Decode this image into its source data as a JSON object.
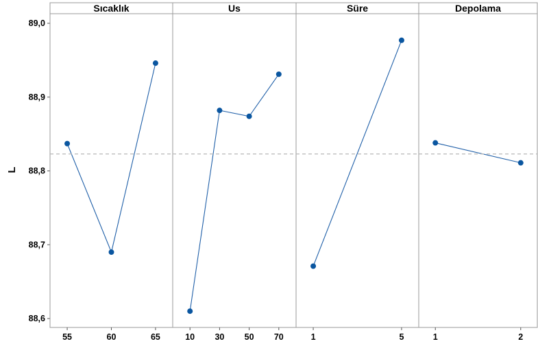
{
  "chart_data": {
    "type": "line",
    "ylabel": "L",
    "ylim": [
      88.6,
      89.0
    ],
    "yticks": [
      88.6,
      88.7,
      88.8,
      88.9,
      89.0
    ],
    "ytick_labels": [
      "88,6",
      "88,7",
      "88,8",
      "88,9",
      "89,0"
    ],
    "grand_mean": 88.823,
    "mean_line_style": "dashed",
    "grid": false,
    "panels": [
      {
        "title": "Sıcaklık",
        "categories": [
          "55",
          "60",
          "65"
        ],
        "values": [
          88.837,
          88.69,
          88.946
        ]
      },
      {
        "title": "Us",
        "categories": [
          "10",
          "30",
          "50",
          "70"
        ],
        "values": [
          88.61,
          88.882,
          88.874,
          88.931
        ]
      },
      {
        "title": "Süre",
        "categories": [
          "1",
          "5"
        ],
        "values": [
          88.671,
          88.977
        ]
      },
      {
        "title": "Depolama",
        "categories": [
          "1",
          "2"
        ],
        "values": [
          88.838,
          88.811
        ]
      }
    ],
    "colors": {
      "series": "#0a56a0",
      "line": "#1f5fa8",
      "mean_line": "#b8b8b8",
      "frame": "#9a9a9a"
    }
  }
}
